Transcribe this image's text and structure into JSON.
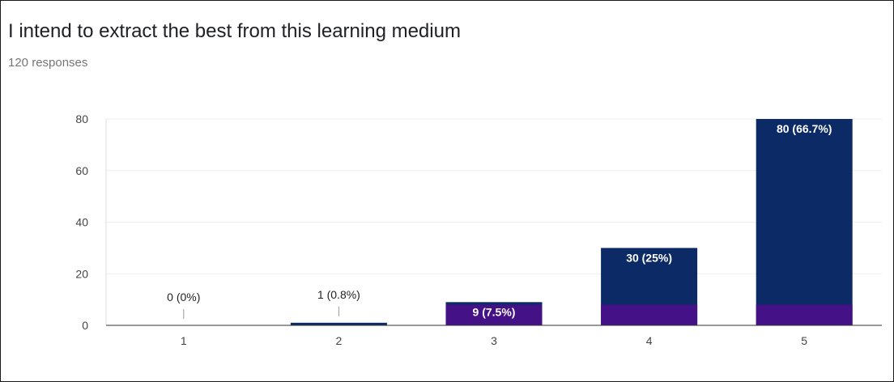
{
  "title": "I intend to extract the best from this learning medium",
  "subtitle": "120 responses",
  "colors": {
    "bar": "#0b2a66",
    "overlay": "#4b0e8a",
    "grid": "#eeeeee",
    "axis": "#333333",
    "label_inside": "#ffffff",
    "label_outside": "#222222"
  },
  "chart_data": {
    "type": "bar",
    "categories": [
      "1",
      "2",
      "3",
      "4",
      "5"
    ],
    "values": [
      0,
      1,
      9,
      30,
      80
    ],
    "data_labels": [
      "0 (0%)",
      "1 (0.8%)",
      "9 (7.5%)",
      "30 (25%)",
      "80 (66.7%)"
    ],
    "title": "I intend to extract the best from this learning medium",
    "subtitle": "120 responses",
    "xlabel": "",
    "ylabel": "",
    "ylim": [
      0,
      80
    ],
    "yticks": [
      "0",
      "20",
      "40",
      "60",
      "80"
    ],
    "grid": true,
    "legend": "none"
  }
}
